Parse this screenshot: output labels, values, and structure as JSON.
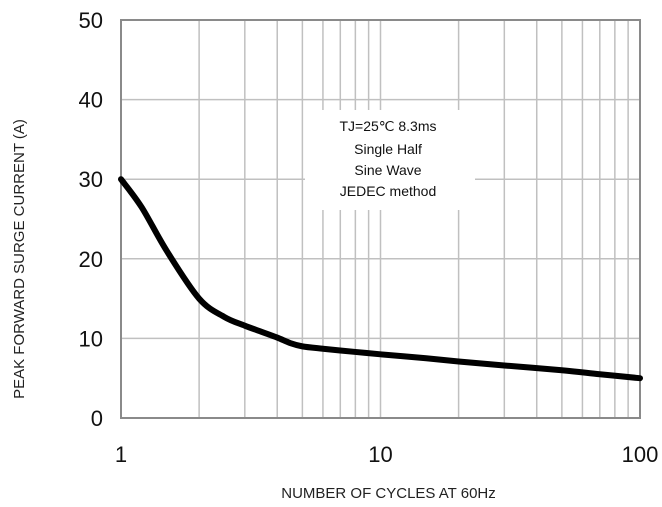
{
  "chart_data": {
    "type": "line",
    "title": "",
    "xlabel": "NUMBER OF CYCLES AT 60Hz",
    "ylabel": "PEAK FORWARD SURGE CURRENT (A)",
    "x_scale": "log",
    "xlim": [
      1,
      100
    ],
    "ylim": [
      0,
      50
    ],
    "x_ticks": [
      1,
      10,
      100
    ],
    "x_tick_labels": [
      "1",
      "10",
      "100"
    ],
    "y_ticks": [
      0,
      10,
      20,
      30,
      40,
      50
    ],
    "y_tick_labels": [
      "0",
      "10",
      "20",
      "30",
      "40",
      "50"
    ],
    "grid": true,
    "legend": "none",
    "annotation": [
      "TJ=25℃ 8.3ms",
      "Single Half",
      "Sine Wave",
      "JEDEC method"
    ],
    "series": [
      {
        "color": "#000000",
        "x": [
          1,
          1.2,
          1.5,
          2,
          2.5,
          3,
          3.5,
          4,
          4.5,
          5,
          6,
          8,
          10,
          15,
          20,
          30,
          50,
          70,
          100
        ],
        "y": [
          30,
          26.5,
          21,
          15,
          12.7,
          11.6,
          10.8,
          10.1,
          9.4,
          9.0,
          8.7,
          8.3,
          8.0,
          7.5,
          7.1,
          6.6,
          6.0,
          5.5,
          5.0
        ]
      }
    ]
  }
}
